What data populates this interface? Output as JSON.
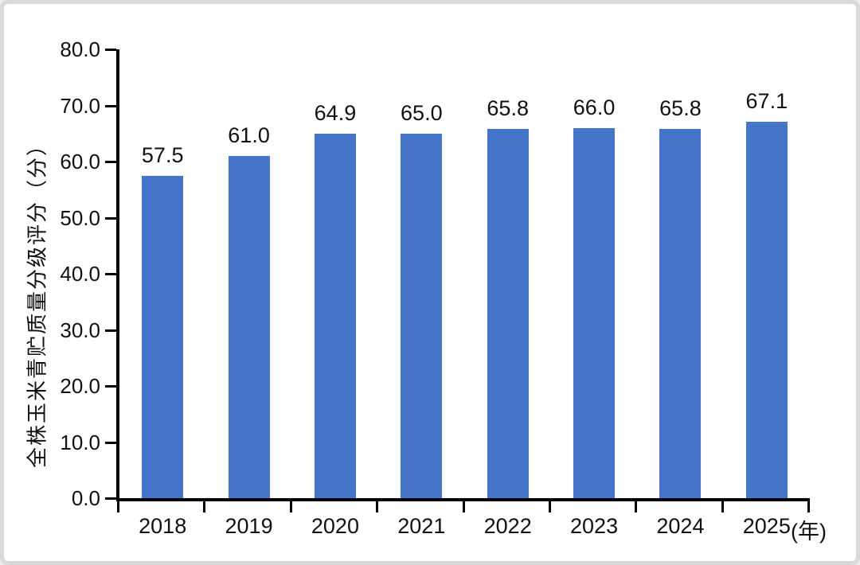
{
  "page": {
    "background": "#ffffff",
    "frame_color": "#d9d9d9"
  },
  "chart_data": {
    "type": "bar",
    "title": "",
    "categories": [
      "2018",
      "2019",
      "2020",
      "2021",
      "2022",
      "2023",
      "2024",
      "2025"
    ],
    "values": [
      57.5,
      61.0,
      64.9,
      65.0,
      65.8,
      66.0,
      65.8,
      67.1
    ],
    "value_labels": [
      "57.5",
      "61.0",
      "64.9",
      "65.0",
      "65.8",
      "66.0",
      "65.8",
      "67.1"
    ],
    "xlabel_unit": "(年)",
    "ylabel": "全株玉米青贮质量分级评分（分）",
    "ylim": [
      0,
      80
    ],
    "ytick_step": 10,
    "ytick_labels": [
      "0.0",
      "10.0",
      "20.0",
      "30.0",
      "40.0",
      "50.0",
      "60.0",
      "70.0",
      "80.0"
    ],
    "grid": false,
    "legend": null,
    "bar_color": "#4574C8",
    "axis_color": "#000000",
    "text_color": "#111111"
  }
}
